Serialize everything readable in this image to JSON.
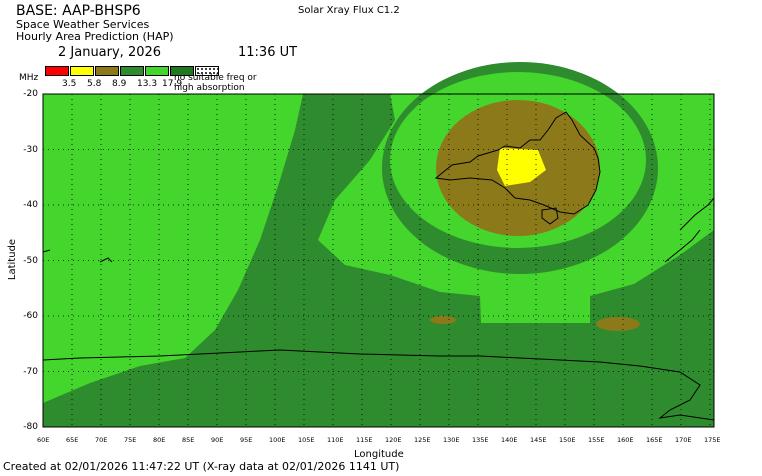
{
  "header": {
    "base": "BASE: AAP-BHSP6",
    "service": "Space Weather Services",
    "product": "Hourly Area Prediction (HAP)",
    "flux": "Solar Xray Flux C1.2",
    "date": "2 January, 2026",
    "time": "11:36 UT"
  },
  "legend": {
    "unit": "MHz",
    "colors": [
      "#ff0000",
      "#ffff00",
      "#8c7a1a",
      "#2e8b2e",
      "#44d62c",
      "#1f7a1f"
    ],
    "labels": [
      "3.5",
      "5.8",
      "8.9",
      "13.3",
      "17.9"
    ],
    "no_freq_icon": "grid-pattern-icon",
    "note_line1": "no suitable freq or",
    "note_line2": "high absorption"
  },
  "axes": {
    "ylabel": "Latitude",
    "xlabel": "Longitude",
    "yticks": [
      "-20",
      "-30",
      "-40",
      "-50",
      "-60",
      "-70",
      "-80"
    ],
    "xticks": [
      "60E",
      "65E",
      "70E",
      "75E",
      "80E",
      "85E",
      "90E",
      "95E",
      "100E",
      "105E",
      "110E",
      "115E",
      "120E",
      "125E",
      "130E",
      "135E",
      "140E",
      "145E",
      "150E",
      "155E",
      "160E",
      "165E",
      "170E",
      "175E"
    ]
  },
  "map_colors": {
    "lightgreen": "#44d62c",
    "darkgreen": "#2e8b2e",
    "olive": "#8c7a1a",
    "yellow": "#ffff00"
  },
  "footer": "Created at 02/01/2026 11:47:22 UT (X-ray data at 02/01/2026 1141 UT)"
}
